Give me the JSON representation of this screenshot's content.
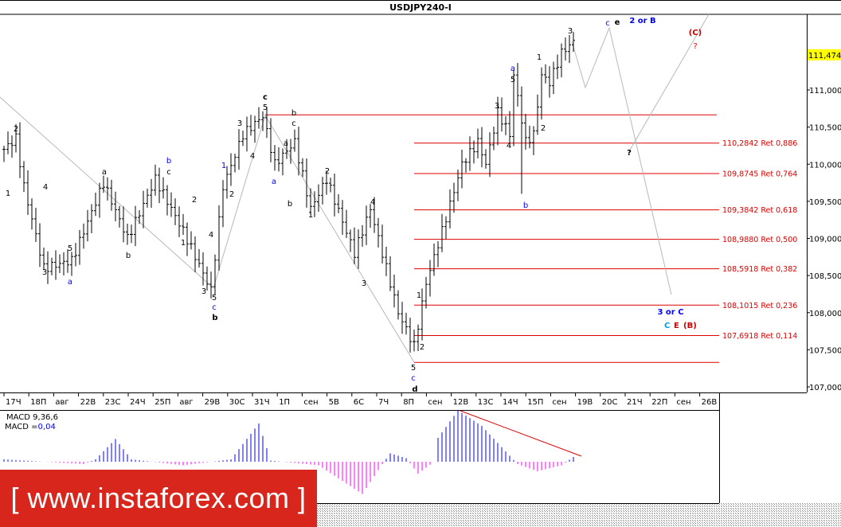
{
  "title": "USDJPY240-I",
  "colors": {
    "fib": "#e00000",
    "projection": "#b8b8b8",
    "macd_pos": "#0000ff",
    "macd_neg": "#ff00ff",
    "current_price_bg": "#ffff00",
    "logo_bg": "#d9261c"
  },
  "chart_data": {
    "type": "candlestick",
    "symbol": "USDJPY240-I",
    "timeframe": "H4",
    "y_ticks": [
      "111,000",
      "110,500",
      "110,000",
      "109,500",
      "109,000",
      "108,500",
      "108,000",
      "107,500",
      "107,000"
    ],
    "y_tick_values": [
      111.0,
      110.5,
      110.0,
      109.5,
      109.0,
      108.5,
      108.0,
      107.5,
      107.0
    ],
    "ylim": [
      106.9,
      112.1
    ],
    "current_price": "111,474",
    "x_ticks": [
      "17Ч",
      "18П",
      "авг",
      "22В",
      "23С",
      "24Ч",
      "25П",
      "авг",
      "29В",
      "30С",
      "31Ч",
      "1П",
      "сен",
      "5В",
      "6С",
      "7Ч",
      "8П",
      "сен",
      "12В",
      "13С",
      "14Ч",
      "15П",
      "сен",
      "19В",
      "20С",
      "21Ч",
      "22П",
      "сен",
      "26В"
    ],
    "price_path_pivots": [
      [
        0,
        110.2
      ],
      [
        3,
        110.35
      ],
      [
        5,
        109.7
      ],
      [
        10,
        108.6
      ],
      [
        17,
        108.7
      ],
      [
        25,
        109.75
      ],
      [
        31,
        109.0
      ],
      [
        38,
        109.8
      ],
      [
        45,
        109.1
      ],
      [
        52,
        108.3
      ],
      [
        55,
        109.7
      ],
      [
        60,
        110.4
      ],
      [
        65,
        110.65
      ],
      [
        68,
        110.0
      ],
      [
        73,
        110.3
      ],
      [
        77,
        109.4
      ],
      [
        81,
        109.8
      ],
      [
        88,
        108.8
      ],
      [
        92,
        109.4
      ],
      [
        99,
        108.0
      ],
      [
        103,
        107.55
      ],
      [
        106,
        108.4
      ],
      [
        110,
        109.1
      ],
      [
        115,
        110.0
      ],
      [
        119,
        110.3
      ],
      [
        121,
        110.0
      ],
      [
        124,
        110.7
      ],
      [
        127,
        110.4
      ],
      [
        128,
        111.2
      ],
      [
        131,
        110.3
      ],
      [
        133,
        110.4
      ],
      [
        135,
        111.2
      ],
      [
        137,
        111.1
      ],
      [
        140,
        111.5
      ],
      [
        143,
        111.65
      ]
    ],
    "fib_levels": [
      {
        "label": "110,2842 Ret 0,886",
        "value": 110.2842
      },
      {
        "label": "109,8745 Ret 0,764",
        "value": 109.8745
      },
      {
        "label": "109,3842 Ret 0,618",
        "value": 109.3842
      },
      {
        "label": "108,9880 Ret 0,500",
        "value": 108.988
      },
      {
        "label": "108,5918 Ret 0,382",
        "value": 108.5918
      },
      {
        "label": "108,1015 Ret 0,236",
        "value": 108.1015
      },
      {
        "label": "107,6918 Ret 0,114",
        "value": 107.6918
      }
    ],
    "fib_range": [
      107.33,
      110.665
    ],
    "wave_labels": [
      {
        "t": "2",
        "c": "#000"
      },
      {
        "t": "1",
        "c": "#000"
      },
      {
        "t": "4",
        "c": "#000"
      },
      {
        "t": "3",
        "c": "#000"
      },
      {
        "t": "5",
        "c": "#000"
      },
      {
        "t": "a",
        "c": "#0000ff"
      },
      {
        "t": "a",
        "c": "#000"
      },
      {
        "t": "b",
        "c": "#000"
      },
      {
        "t": "b",
        "c": "#0000ff"
      },
      {
        "t": "c",
        "c": "#000"
      },
      {
        "t": "1",
        "c": "#000"
      },
      {
        "t": "2",
        "c": "#000"
      },
      {
        "t": "4",
        "c": "#000"
      },
      {
        "t": "3",
        "c": "#000"
      },
      {
        "t": "5",
        "c": "#000"
      },
      {
        "t": "c",
        "c": "#0000ff"
      },
      {
        "t": "b",
        "c": "#000"
      },
      {
        "t": "1",
        "c": "#0000ff"
      },
      {
        "t": "2",
        "c": "#000"
      },
      {
        "t": "3",
        "c": "#000"
      },
      {
        "t": "4",
        "c": "#000"
      },
      {
        "t": "c",
        "c": "#000"
      },
      {
        "t": "5",
        "c": "#000"
      },
      {
        "t": "a",
        "c": "#0000ff"
      },
      {
        "t": "a",
        "c": "#000"
      },
      {
        "t": "b",
        "c": "#000"
      },
      {
        "t": "b",
        "c": "#000"
      },
      {
        "t": "c",
        "c": "#000"
      },
      {
        "t": "1",
        "c": "#000"
      },
      {
        "t": "2",
        "c": "#000"
      },
      {
        "t": "3",
        "c": "#000"
      },
      {
        "t": "4",
        "c": "#000"
      },
      {
        "t": "5",
        "c": "#000"
      },
      {
        "t": "c",
        "c": "#0000ff"
      },
      {
        "t": "d",
        "c": "#000"
      },
      {
        "t": "1",
        "c": "#000"
      },
      {
        "t": "2",
        "c": "#000"
      },
      {
        "t": "3",
        "c": "#000"
      },
      {
        "t": "4",
        "c": "#000"
      },
      {
        "t": "a",
        "c": "#0000ff"
      },
      {
        "t": "5",
        "c": "#000"
      },
      {
        "t": "b",
        "c": "#0000ff"
      },
      {
        "t": "1",
        "c": "#000"
      },
      {
        "t": "2",
        "c": "#000"
      },
      {
        "t": "3",
        "c": "#000"
      },
      {
        "t": "c",
        "c": "#0000ff"
      },
      {
        "t": "e",
        "c": "#000"
      },
      {
        "t": "2 or B",
        "c": "#0000ff"
      },
      {
        "t": "(C)",
        "c": "#cc0000"
      },
      {
        "t": "?",
        "c": "#ff0000"
      },
      {
        "t": "?",
        "c": "#000"
      },
      {
        "t": "3 or C",
        "c": "#0000ff"
      },
      {
        "t": "C",
        "c": "#00a0e0"
      },
      {
        "t": "E",
        "c": "#e00000"
      },
      {
        "t": "(B)",
        "c": "#cc0000"
      }
    ],
    "macd": {
      "label": "MACD 9,36,6",
      "value_prefix": "MACD =",
      "value": "0,04",
      "histogram_pivots": [
        [
          0,
          0.02
        ],
        [
          20,
          -0.02
        ],
        [
          23,
          0.02
        ],
        [
          28,
          0.19
        ],
        [
          32,
          0.02
        ],
        [
          45,
          -0.03
        ],
        [
          57,
          0.02
        ],
        [
          64,
          0.32
        ],
        [
          67,
          0.01
        ],
        [
          79,
          -0.03
        ],
        [
          90,
          -0.27
        ],
        [
          95,
          -0.02
        ],
        [
          97,
          0.07
        ],
        [
          101,
          0.03
        ],
        [
          104,
          -0.1
        ],
        [
          108,
          0.0
        ],
        [
          109,
          0.2
        ],
        [
          114,
          0.43
        ],
        [
          120,
          0.3
        ],
        [
          127,
          0.05
        ],
        [
          129,
          -0.02
        ],
        [
          134,
          -0.08
        ],
        [
          140,
          -0.03
        ],
        [
          143,
          0.04
        ]
      ]
    }
  },
  "logo": {
    "text": "[ www.instaforex.com ]"
  }
}
